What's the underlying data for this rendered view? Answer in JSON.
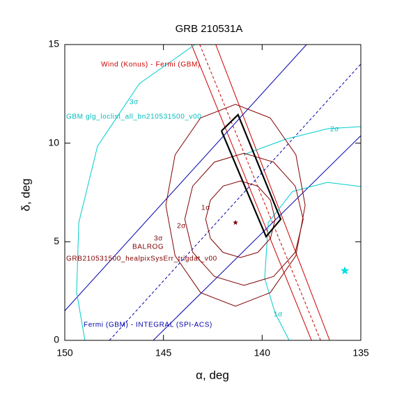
{
  "chart_data": {
    "type": "line",
    "title": "GRB 210531A",
    "x_label": "α, deg",
    "y_label": "δ, deg",
    "xlim": [
      150,
      135
    ],
    "ylim": [
      0,
      15
    ],
    "xticks": [
      150,
      145,
      140,
      135
    ],
    "yticks": [
      0,
      5,
      10,
      15
    ],
    "series": [
      {
        "color": "#cc0000",
        "dashed": false,
        "x": [
          143.58,
          137.5
        ],
        "y": [
          15,
          0
        ]
      },
      {
        "color": "#cc0000",
        "dashed": true,
        "x": [
          143.16,
          137.04
        ],
        "y": [
          15,
          0
        ]
      },
      {
        "color": "#cc0000",
        "dashed": false,
        "x": [
          142.35,
          136.58
        ],
        "y": [
          15,
          0
        ]
      },
      {
        "color": "#0000aa",
        "dashed": false,
        "x": [
          150,
          137.75
        ],
        "y": [
          1.5,
          15
        ]
      },
      {
        "color": "#0000aa",
        "dashed": true,
        "x": [
          147.74,
          135
        ],
        "y": [
          0,
          14.01
        ]
      },
      {
        "color": "#0000aa",
        "dashed": false,
        "x": [
          145.52,
          135
        ],
        "y": [
          0,
          10.38
        ]
      },
      {
        "color": "#00cccc",
        "dashed": false,
        "x": [
          143.4,
          146.22,
          148.34,
          149.29,
          149.4,
          148.98
        ],
        "y": [
          15,
          13.02,
          9.85,
          5.97,
          2.44,
          0
        ]
      },
      {
        "color": "#00cccc",
        "dashed": false,
        "x": [
          140.93,
          138.81,
          136.69,
          135
        ],
        "y": [
          9.42,
          10.2,
          10.73,
          10.84
        ]
      },
      {
        "color": "#00cccc",
        "dashed": false,
        "x": [
          138.63,
          139.34,
          139.87,
          139.69,
          138.46,
          136.69,
          135
        ],
        "y": [
          0,
          1.38,
          3.14,
          5.97,
          7.55,
          8.01,
          7.8
        ]
      },
      {
        "color": "#800000",
        "dashed": false,
        "x": [
          142.86,
          142.62,
          141.98,
          141.1,
          140.22,
          139.58,
          139.34,
          139.58,
          140.22,
          141.1,
          141.98,
          142.62,
          142.86
        ],
        "y": [
          6.14,
          7.11,
          7.82,
          8.08,
          7.82,
          7.11,
          6.14,
          5.17,
          4.46,
          4.2,
          4.46,
          5.17,
          6.14
        ]
      },
      {
        "color": "#800000",
        "dashed": false,
        "x": [
          143.92,
          143.52,
          142.42,
          140.92,
          139.42,
          138.32,
          137.92,
          138.32,
          139.42,
          140.92,
          142.42,
          143.52,
          143.92
        ],
        "y": [
          6.14,
          7.82,
          9.04,
          9.49,
          9.04,
          7.82,
          6.14,
          4.47,
          3.24,
          2.79,
          3.24,
          4.47,
          6.14
        ]
      },
      {
        "color": "#800000",
        "dashed": false,
        "x": [
          144.88,
          144.41,
          143.12,
          141.35,
          139.59,
          138.29,
          137.82,
          138.29,
          139.59,
          141.35,
          143.12,
          144.41,
          144.88
        ],
        "y": [
          6.85,
          9.41,
          11.28,
          11.97,
          11.28,
          9.41,
          6.85,
          4.29,
          2.42,
          1.73,
          2.42,
          4.29,
          6.85
        ]
      },
      {
        "color": "#000000",
        "dashed": false,
        "x": [
          142.06,
          141.22,
          139.06,
          139.8,
          142.06
        ],
        "y": [
          10.62,
          11.44,
          6.14,
          5.26,
          10.62
        ]
      }
    ],
    "markers": [
      {
        "color": "#800000",
        "x": 141.35,
        "y": 5.97
      },
      {
        "color": "#00e0e0",
        "x": 135.81,
        "y": 3.53
      }
    ],
    "annotations": [
      {
        "text": "Wind (Konus) - Fermi (GBM)",
        "color": "#cc0000"
      },
      {
        "text": "GBM glg_loclist_all_bn210531500_v00",
        "color": "#00bbbb"
      },
      {
        "text": "3σ",
        "color": "#00bbbb"
      },
      {
        "text": "2σ",
        "color": "#00bbbb"
      },
      {
        "text": "1σ",
        "color": "#00bbbb"
      },
      {
        "text": "Fermi (GBM) - INTEGRAL (SPI-ACS)",
        "color": "#0000aa"
      },
      {
        "text": "1σ",
        "color": "#800000"
      },
      {
        "text": "2σ",
        "color": "#800000"
      },
      {
        "text": "3σ",
        "color": "#800000"
      },
      {
        "text": "BALROG",
        "color": "#800000"
      },
      {
        "text": "GRB210531500_healpixSysErr_trigdat_v00",
        "color": "#800000"
      }
    ]
  }
}
